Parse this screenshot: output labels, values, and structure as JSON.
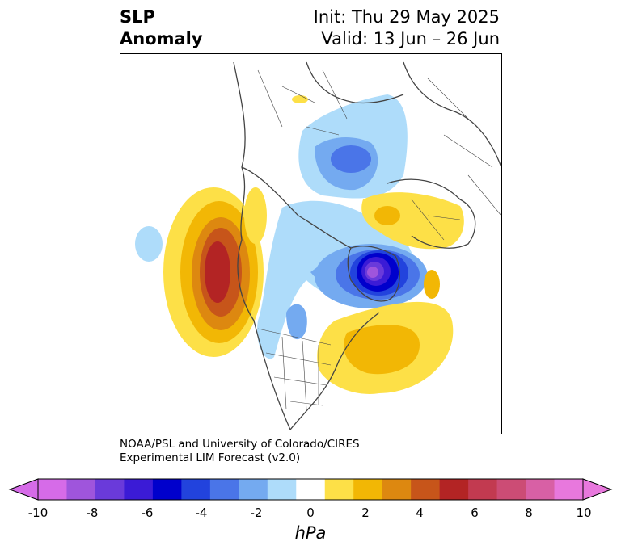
{
  "title": {
    "left_line1": "SLP",
    "left_line2": "Anomaly",
    "right_line1": "Init: Thu 29 May 2025",
    "right_line2": "Valid: 13 Jun – 26 Jun"
  },
  "credit": {
    "line1": "NOAA/PSL and University of Colorado/CIRES",
    "line2": "Experimental LIM Forecast (v2.0)"
  },
  "colorbar": {
    "unit": "hPa",
    "ticks": [
      "-10",
      "-8",
      "-6",
      "-4",
      "-2",
      "0",
      "2",
      "4",
      "6",
      "8",
      "10"
    ],
    "bins": [
      -10,
      -9,
      -8,
      -7,
      -6,
      -5,
      -4,
      -3,
      -2,
      -1,
      1,
      2,
      3,
      4,
      5,
      6,
      7,
      8,
      9,
      10
    ],
    "colors": [
      "#d66be8",
      "#9f55dc",
      "#6a3ada",
      "#3b1bd6",
      "#0000cc",
      "#2243dd",
      "#4a75e8",
      "#74aaf0",
      "#aedcfa",
      "#ffffff",
      "#fde047",
      "#f2b705",
      "#dd8810",
      "#c7551a",
      "#b32424",
      "#c23a50",
      "#cc4c75",
      "#d860a5",
      "#e878dd"
    ],
    "extend_min_color": "#d66be8",
    "extend_max_color": "#e878dd"
  },
  "map": {
    "projection": "north-polar-stereographic",
    "features": [
      {
        "name": "positive anomaly over NE Pacific",
        "peak_hpa": 6
      },
      {
        "name": "negative anomaly near Greenland/Baffin",
        "peak_hpa": -9
      },
      {
        "name": "positive anomaly off US East Coast",
        "peak_hpa": 3
      },
      {
        "name": "negative anomaly over Siberia",
        "peak_hpa": -4
      },
      {
        "name": "positive anomaly over Europe",
        "peak_hpa": 2
      }
    ]
  }
}
